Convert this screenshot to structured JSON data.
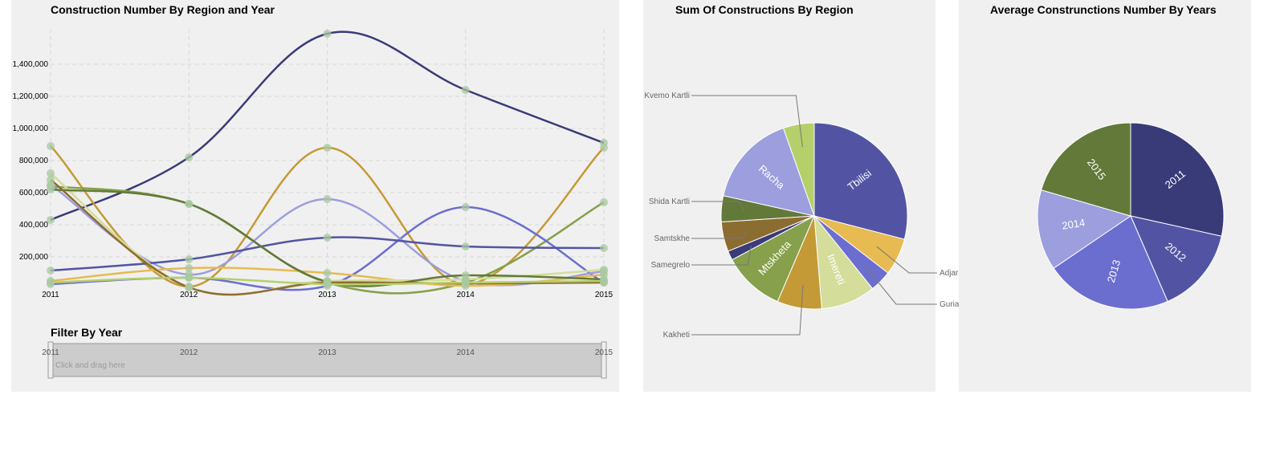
{
  "line_panel": {
    "title": "Construction Number By Region and Year",
    "filter_title": "Filter By Year",
    "brush_hint": "Click and drag here"
  },
  "pie_region_panel": {
    "title": "Sum Of Constructions By Region"
  },
  "pie_year_panel": {
    "title": "Average Construnctions Number By Years"
  },
  "chart_data": [
    {
      "type": "line",
      "title": "Construction Number By Region and Year",
      "x": [
        2011,
        2012,
        2013,
        2014,
        2015
      ],
      "x_tick_labels": [
        "2011",
        "2012",
        "2013",
        "2014",
        "2015"
      ],
      "y_ticks": [
        200000,
        400000,
        600000,
        800000,
        1000000,
        1200000,
        1400000
      ],
      "y_tick_labels": [
        "200,000",
        "400,000",
        "600,000",
        "800,000",
        "1,000,000",
        "1,200,000",
        "1,400,000"
      ],
      "ylim": [
        0,
        1620000
      ],
      "grid": true,
      "series": [
        {
          "color": "#3a3b78",
          "values": [
            430000,
            820000,
            1590000,
            1240000,
            910000
          ]
        },
        {
          "color": "#c49a36",
          "values": [
            890000,
            15000,
            880000,
            30000,
            880000
          ]
        },
        {
          "color": "#86a04b",
          "values": [
            640000,
            530000,
            40000,
            40000,
            540000
          ]
        },
        {
          "color": "#6b6ecf",
          "values": [
            30000,
            70000,
            20000,
            510000,
            40000
          ]
        },
        {
          "color": "#9c9ede",
          "values": [
            650000,
            90000,
            560000,
            50000,
            110000
          ]
        },
        {
          "color": "#5254a3",
          "values": [
            115000,
            185000,
            320000,
            265000,
            255000
          ]
        },
        {
          "color": "#e7ba52",
          "values": [
            50000,
            130000,
            100000,
            20000,
            90000
          ]
        },
        {
          "color": "#d4dd9a",
          "values": [
            720000,
            10000,
            50000,
            60000,
            120000
          ]
        },
        {
          "color": "#637939",
          "values": [
            620000,
            530000,
            45000,
            85000,
            60000
          ]
        },
        {
          "color": "#8c6d31",
          "values": [
            680000,
            10000,
            40000,
            35000,
            40000
          ]
        },
        {
          "color": "#b5cf6b",
          "values": [
            40000,
            70000,
            30000,
            40000,
            50000
          ]
        }
      ],
      "brush": {
        "x_tick_labels": [
          "2011",
          "2012",
          "2013",
          "2014",
          "2015"
        ]
      }
    },
    {
      "type": "pie",
      "title": "Sum Of Constructions By Region",
      "slices": [
        {
          "label": "Tbilisi",
          "value": 27.0,
          "color": "#5254a3",
          "label_pos": "inside"
        },
        {
          "label": "Adjara",
          "value": 6.0,
          "color": "#e7ba52",
          "label_pos": "outside-right"
        },
        {
          "label": "Guria",
          "value": 3.5,
          "color": "#6b6ecf",
          "label_pos": "outside-right"
        },
        {
          "label": "Imereti",
          "value": 8.8,
          "color": "#d4dd9a",
          "label_pos": "inside"
        },
        {
          "label": "Kakheti",
          "value": 7.2,
          "color": "#c49a36",
          "label_pos": "outside-left"
        },
        {
          "label": "Mtskheta",
          "value": 10.0,
          "color": "#86a04b",
          "label_pos": "inside"
        },
        {
          "label": "Samegrelo",
          "value": 1.5,
          "color": "#3a3b78",
          "label_pos": "outside-left"
        },
        {
          "label": "Samtskhe",
          "value": 4.8,
          "color": "#8c6d31",
          "label_pos": "outside-left"
        },
        {
          "label": "Shida Kartli",
          "value": 4.2,
          "color": "#637939",
          "label_pos": "outside-left"
        },
        {
          "label": "Racha",
          "value": 15.0,
          "color": "#9c9ede",
          "label_pos": "inside"
        },
        {
          "label": "Kvemo Kartli",
          "value": 5.0,
          "color": "#b5cf6b",
          "label_pos": "outside-left"
        }
      ]
    },
    {
      "type": "pie",
      "title": "Average Construnctions Number By Years",
      "slices": [
        {
          "label": "2011",
          "value": 28.5,
          "color": "#393b79"
        },
        {
          "label": "2012",
          "value": 15.0,
          "color": "#5254a3"
        },
        {
          "label": "2013",
          "value": 22.0,
          "color": "#6b6ecf"
        },
        {
          "label": "2014",
          "value": 14.0,
          "color": "#9c9ede"
        },
        {
          "label": "2015",
          "value": 20.5,
          "color": "#637939"
        }
      ]
    }
  ]
}
